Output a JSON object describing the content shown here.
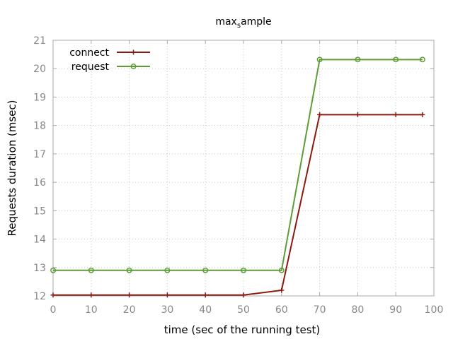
{
  "chart_data": {
    "type": "line",
    "title": "max_sample",
    "title_base": "max",
    "title_sub": "s",
    "title_rest": "ample",
    "xlabel": "time (sec of the running test)",
    "ylabel": "Requests duration (msec)",
    "xlim": [
      0,
      100
    ],
    "ylim": [
      12,
      21
    ],
    "xticks": [
      0,
      10,
      20,
      30,
      40,
      50,
      60,
      70,
      80,
      90,
      100
    ],
    "yticks": [
      12,
      13,
      14,
      15,
      16,
      17,
      18,
      19,
      20,
      21
    ],
    "grid": true,
    "legend_position": "top-left",
    "series": [
      {
        "name": "connect",
        "color": "#8b1a0e",
        "marker": "plus",
        "x": [
          0,
          10,
          20,
          30,
          40,
          50,
          60,
          70,
          80,
          90,
          97
        ],
        "y": [
          12.03,
          12.03,
          12.03,
          12.03,
          12.03,
          12.03,
          12.2,
          18.38,
          18.38,
          18.38,
          18.38
        ]
      },
      {
        "name": "request",
        "color": "#5e9c36",
        "marker": "circle",
        "x": [
          0,
          10,
          20,
          30,
          40,
          50,
          60,
          70,
          80,
          90,
          97
        ],
        "y": [
          12.9,
          12.9,
          12.9,
          12.9,
          12.9,
          12.9,
          12.9,
          20.32,
          20.32,
          20.32,
          20.32
        ]
      }
    ]
  }
}
